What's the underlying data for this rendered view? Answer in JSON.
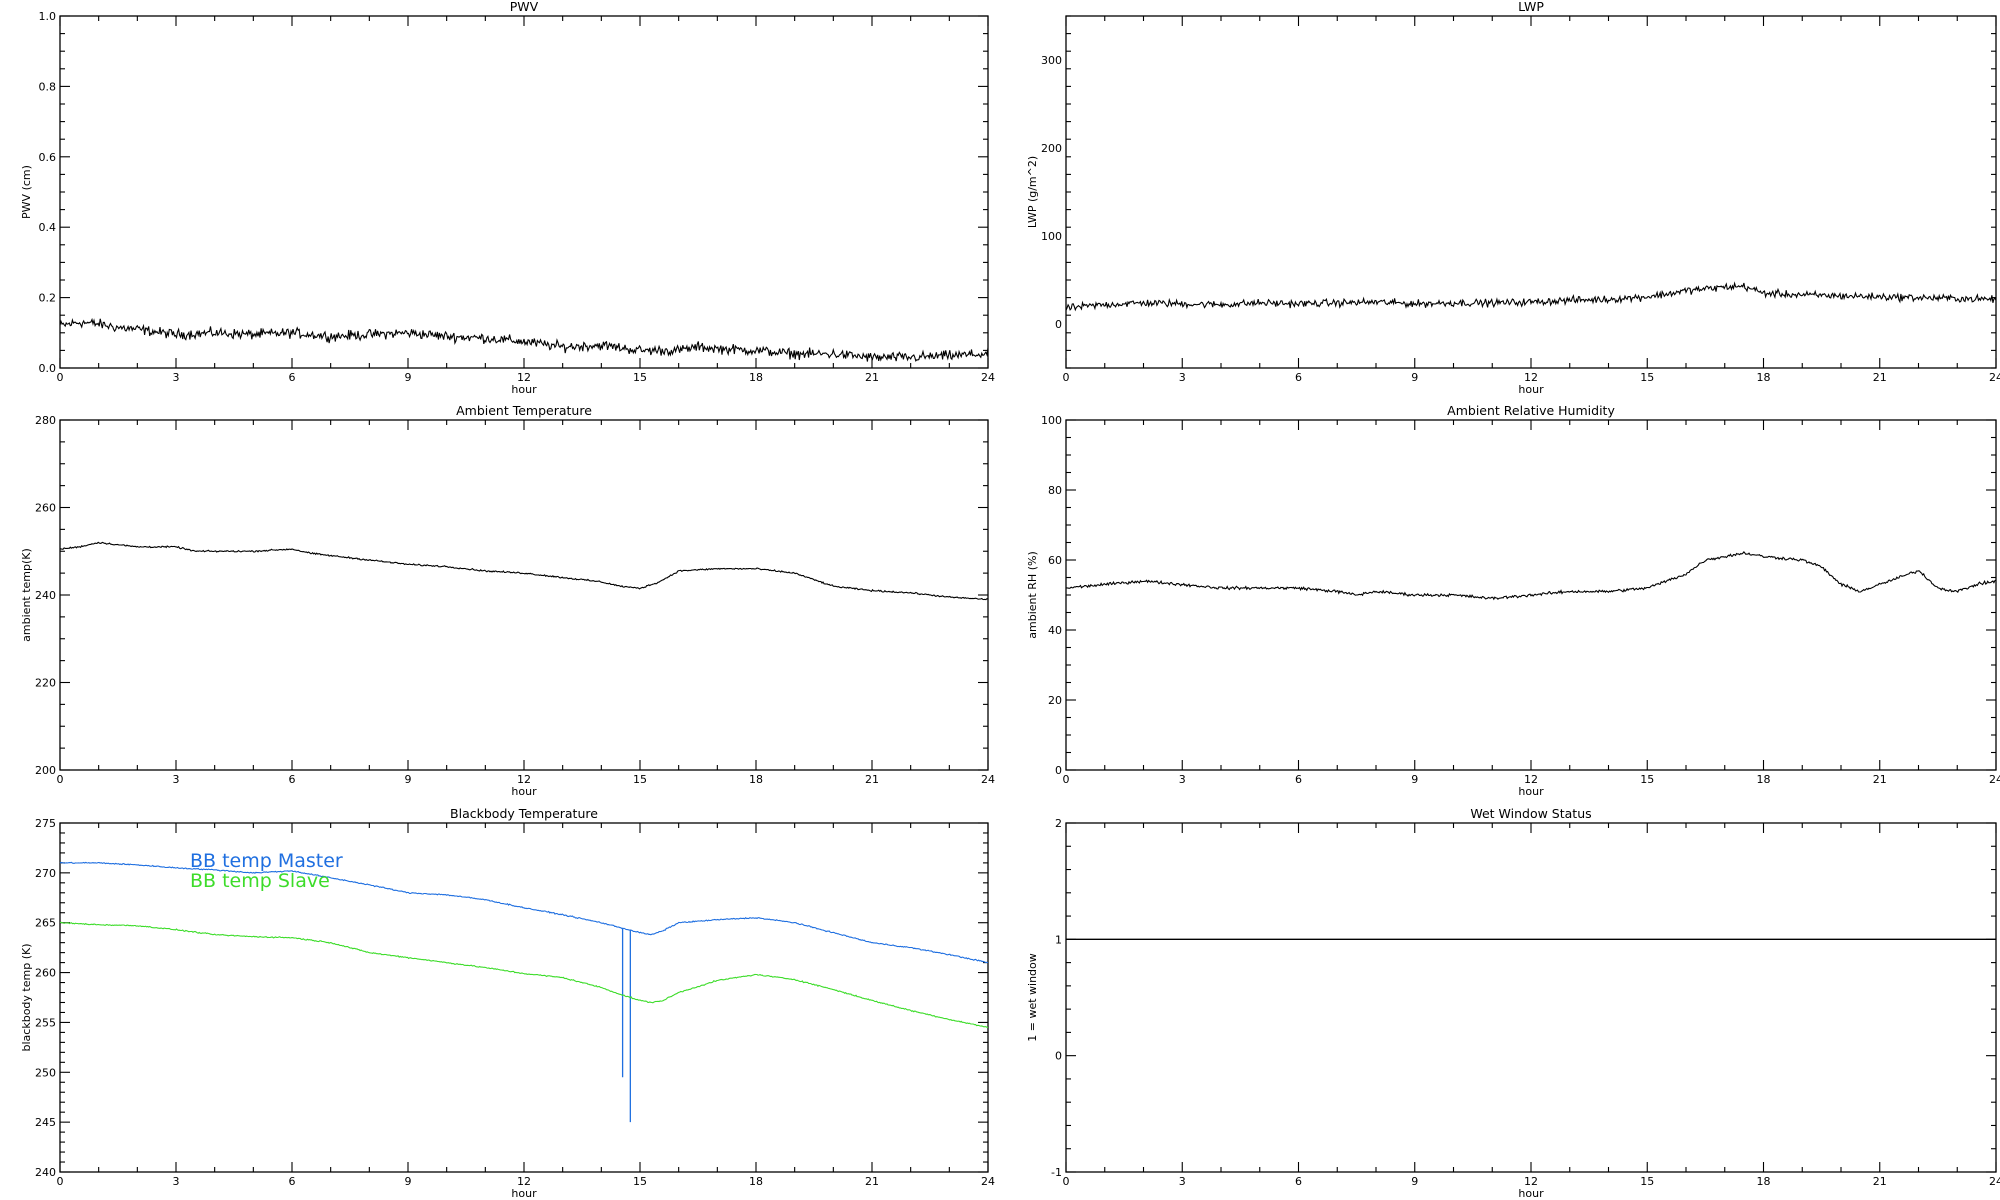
{
  "chart_data": [
    {
      "id": "pwv",
      "type": "line",
      "title": "PWV",
      "xlabel": "hour",
      "ylabel": "PWV (cm)",
      "xlim": [
        0,
        24
      ],
      "ylim": [
        0.0,
        1.0
      ],
      "xticks": [
        0,
        3,
        6,
        9,
        12,
        15,
        18,
        21,
        24
      ],
      "xtick_labels": [
        "0",
        "3",
        "6",
        "9",
        "12",
        "15",
        "18",
        "21",
        "24"
      ],
      "yticks": [
        0.0,
        0.2,
        0.4,
        0.6,
        0.8,
        1.0
      ],
      "ytick_labels": [
        "0.0",
        "0.2",
        "0.4",
        "0.6",
        "0.8",
        "1.0"
      ],
      "yminor": 4,
      "series": [
        {
          "color": "#000000",
          "noise": 0.012,
          "x": [
            0,
            0.5,
            1,
            1.5,
            2,
            3,
            4,
            5,
            6,
            7,
            8,
            9,
            10,
            11,
            12,
            13,
            14,
            15,
            16,
            16.5,
            17,
            18,
            19,
            20,
            21,
            21.5,
            22,
            23,
            24
          ],
          "y": [
            0.12,
            0.13,
            0.125,
            0.115,
            0.11,
            0.095,
            0.1,
            0.095,
            0.1,
            0.09,
            0.095,
            0.1,
            0.09,
            0.085,
            0.075,
            0.06,
            0.065,
            0.05,
            0.05,
            0.06,
            0.055,
            0.05,
            0.04,
            0.04,
            0.03,
            0.03,
            0.03,
            0.035,
            0.04
          ]
        }
      ]
    },
    {
      "id": "lwp",
      "type": "line",
      "title": "LWP",
      "xlabel": "hour",
      "ylabel": "LWP (g/m^2)",
      "xlim": [
        0,
        24
      ],
      "ylim": [
        -50,
        350
      ],
      "xticks": [
        0,
        3,
        6,
        9,
        12,
        15,
        18,
        21,
        24
      ],
      "xtick_labels": [
        "0",
        "3",
        "6",
        "9",
        "12",
        "15",
        "18",
        "21",
        "24"
      ],
      "yticks": [
        0,
        100,
        200,
        300
      ],
      "ytick_labels": [
        "0",
        "100",
        "200",
        "300"
      ],
      "yminor": 5,
      "series": [
        {
          "color": "#000000",
          "noise": 3.5,
          "x": [
            0,
            0.5,
            1,
            2,
            3,
            4,
            5,
            6,
            7,
            8,
            9,
            10,
            11,
            12,
            13,
            14,
            15,
            15.5,
            16,
            16.5,
            17,
            17.5,
            18,
            19,
            20,
            21,
            22,
            23,
            24
          ],
          "y": [
            18,
            20,
            22,
            24,
            23,
            22,
            24,
            23,
            24,
            25,
            23,
            24,
            24,
            25,
            27,
            28,
            31,
            34,
            38,
            40,
            42,
            43,
            35,
            33,
            32,
            31,
            30,
            29,
            28
          ]
        }
      ]
    },
    {
      "id": "ambient-temperature",
      "type": "line",
      "title": "Ambient Temperature",
      "xlabel": "hour",
      "ylabel": "ambient temp(K)",
      "xlim": [
        0,
        24
      ],
      "ylim": [
        200,
        280
      ],
      "xticks": [
        0,
        3,
        6,
        9,
        12,
        15,
        18,
        21,
        24
      ],
      "xtick_labels": [
        "0",
        "3",
        "6",
        "9",
        "12",
        "15",
        "18",
        "21",
        "24"
      ],
      "yticks": [
        200,
        220,
        240,
        260,
        280
      ],
      "ytick_labels": [
        "200",
        "220",
        "240",
        "260",
        "280"
      ],
      "yminor": 4,
      "series": [
        {
          "color": "#000000",
          "noise": 0.15,
          "x": [
            0,
            0.5,
            1,
            1.5,
            2,
            3,
            3.5,
            4,
            5,
            6,
            6.5,
            7,
            8,
            9,
            10,
            11,
            12,
            13,
            14,
            14.5,
            15,
            15.5,
            16,
            17,
            18,
            19,
            19.5,
            20,
            21,
            22,
            23,
            24
          ],
          "y": [
            250.5,
            251,
            252,
            251.5,
            251,
            251,
            250,
            250,
            250,
            250.5,
            249.5,
            249,
            248,
            247,
            246.5,
            245.5,
            245,
            244,
            243,
            242,
            241.5,
            243,
            245.5,
            246,
            246,
            245,
            243.5,
            242,
            241,
            240.5,
            239.5,
            239
          ]
        }
      ]
    },
    {
      "id": "ambient-relative-humidity",
      "type": "line",
      "title": "Ambient Relative Humidity",
      "xlabel": "hour",
      "ylabel": "ambient RH (%)",
      "xlim": [
        0,
        24
      ],
      "ylim": [
        0,
        100
      ],
      "xticks": [
        0,
        3,
        6,
        9,
        12,
        15,
        18,
        21,
        24
      ],
      "xtick_labels": [
        "0",
        "3",
        "6",
        "9",
        "12",
        "15",
        "18",
        "21",
        "24"
      ],
      "yticks": [
        0,
        20,
        40,
        60,
        80,
        100
      ],
      "ytick_labels": [
        "0",
        "20",
        "40",
        "60",
        "80",
        "100"
      ],
      "yminor": 4,
      "series": [
        {
          "color": "#000000",
          "noise": 0.35,
          "x": [
            0,
            1,
            2,
            3,
            4,
            5,
            6,
            7,
            7.5,
            8,
            9,
            10,
            11,
            12,
            13,
            14,
            15,
            15.5,
            16,
            16.5,
            17,
            17.5,
            18,
            19,
            19.5,
            20,
            20.5,
            21,
            21.5,
            22,
            22.5,
            23,
            23.5,
            24
          ],
          "y": [
            52,
            53,
            54,
            53,
            52,
            52,
            52,
            51,
            50,
            51,
            50,
            50,
            49,
            50,
            51,
            51,
            52,
            54,
            56,
            60,
            61,
            62,
            61,
            60,
            58,
            53,
            51,
            53,
            55,
            57,
            52,
            51,
            53,
            54
          ]
        }
      ]
    },
    {
      "id": "blackbody-temperature",
      "type": "line",
      "title": "Blackbody Temperature",
      "xlabel": "hour",
      "ylabel": "blackbody temp (K)",
      "xlim": [
        0,
        24
      ],
      "ylim": [
        240,
        275
      ],
      "xticks": [
        0,
        3,
        6,
        9,
        12,
        15,
        18,
        21,
        24
      ],
      "xtick_labels": [
        "0",
        "3",
        "6",
        "9",
        "12",
        "15",
        "18",
        "21",
        "24"
      ],
      "yticks": [
        240,
        245,
        250,
        255,
        260,
        265,
        270,
        275
      ],
      "ytick_labels": [
        "240",
        "245",
        "250",
        "255",
        "260",
        "265",
        "270",
        "275"
      ],
      "yminor": 5,
      "legend": "top-left",
      "series": [
        {
          "name": "BB temp Master",
          "color": "#1f6fe0",
          "noise": 0.05,
          "x": [
            0,
            1,
            2,
            3,
            4,
            5,
            6,
            7,
            8,
            9,
            10,
            11,
            12,
            13,
            14,
            14.5,
            15,
            15.3,
            15.6,
            16,
            17,
            18,
            19,
            20,
            21,
            22,
            23,
            24
          ],
          "y": [
            271,
            271,
            270.8,
            270.5,
            270.3,
            270,
            270.2,
            269.5,
            268.8,
            268,
            267.8,
            267.3,
            266.5,
            265.8,
            265,
            264.5,
            264,
            263.8,
            264.2,
            265,
            265.3,
            265.5,
            265,
            264,
            263,
            262.5,
            261.8,
            261
          ],
          "spikes": [
            {
              "x": 14.55,
              "y_top": 264.5,
              "y_bottom": 249.5
            },
            {
              "x": 14.75,
              "y_top": 264.3,
              "y_bottom": 245
            }
          ]
        },
        {
          "name": "BB temp Slave",
          "color": "#3ddc2a",
          "noise": 0.05,
          "x": [
            0,
            1,
            2,
            3,
            4,
            5,
            6,
            7,
            8,
            9,
            10,
            11,
            12,
            13,
            14,
            14.5,
            15,
            15.3,
            15.6,
            16,
            17,
            18,
            19,
            20,
            21,
            22,
            23,
            24
          ],
          "y": [
            265,
            264.8,
            264.7,
            264.3,
            263.8,
            263.6,
            263.5,
            263,
            262,
            261.5,
            261,
            260.5,
            259.9,
            259.5,
            258.5,
            257.8,
            257.2,
            257,
            257.2,
            258,
            259.2,
            259.8,
            259.3,
            258.3,
            257.2,
            256.2,
            255.3,
            254.5
          ]
        }
      ]
    },
    {
      "id": "wet-window-status",
      "type": "line",
      "title": "Wet Window Status",
      "xlabel": "hour",
      "ylabel": "1 = wet window",
      "xlim": [
        0,
        24
      ],
      "ylim": [
        -1,
        2
      ],
      "xticks": [
        0,
        3,
        6,
        9,
        12,
        15,
        18,
        21,
        24
      ],
      "xtick_labels": [
        "0",
        "3",
        "6",
        "9",
        "12",
        "15",
        "18",
        "21",
        "24"
      ],
      "yticks": [
        -1,
        0,
        1,
        2
      ],
      "ytick_labels": [
        "-1",
        "0",
        "1",
        "2"
      ],
      "yminor": 5,
      "series": [
        {
          "color": "#000000",
          "noise": 0,
          "x": [
            0,
            24
          ],
          "y": [
            1,
            1
          ]
        }
      ]
    }
  ]
}
